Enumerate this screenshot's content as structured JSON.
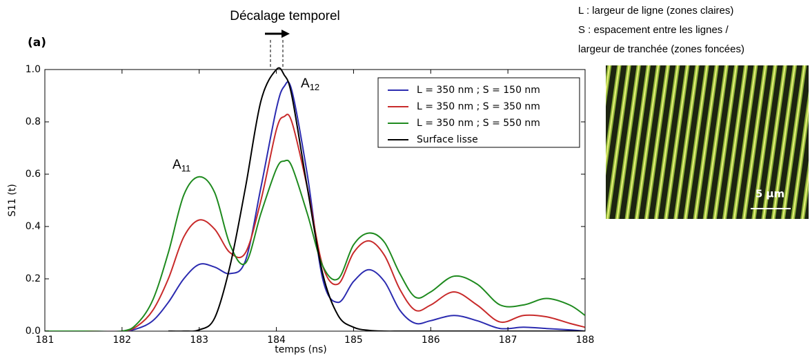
{
  "chart_data": {
    "type": "line",
    "title": "Décalage temporel",
    "panel_label": "(a)",
    "x_label": "temps (ns)",
    "y_label": "S11 (t)",
    "annotations": [
      {
        "text": "A",
        "sub": "11"
      },
      {
        "text": "A",
        "sub": "12"
      }
    ],
    "x": [
      181,
      181.5,
      182,
      182.2,
      182.4,
      182.6,
      182.8,
      183,
      183.2,
      183.4,
      183.6,
      183.8,
      184,
      184.1,
      184.2,
      184.4,
      184.6,
      184.8,
      185,
      185.2,
      185.4,
      185.6,
      185.8,
      186,
      186.3,
      186.6,
      186.9,
      187.2,
      187.5,
      187.8,
      188
    ],
    "series": [
      {
        "name": "L = 350 nm ; S = 150 nm",
        "color": "#2b2bb0",
        "values": [
          0,
          0,
          0,
          0.01,
          0.04,
          0.11,
          0.2,
          0.255,
          0.245,
          0.22,
          0.27,
          0.55,
          0.85,
          0.935,
          0.92,
          0.6,
          0.2,
          0.11,
          0.19,
          0.235,
          0.19,
          0.08,
          0.03,
          0.04,
          0.06,
          0.04,
          0.01,
          0.015,
          0.01,
          0.005,
          0
        ]
      },
      {
        "name": "L = 350 nm ; S = 350 nm",
        "color": "#c82a2a",
        "values": [
          0,
          0,
          0,
          0.02,
          0.08,
          0.2,
          0.36,
          0.425,
          0.39,
          0.3,
          0.3,
          0.5,
          0.77,
          0.82,
          0.8,
          0.55,
          0.25,
          0.18,
          0.3,
          0.345,
          0.29,
          0.16,
          0.08,
          0.1,
          0.15,
          0.1,
          0.035,
          0.06,
          0.055,
          0.03,
          0.015
        ]
      },
      {
        "name": "L = 350 nm ; S = 550 nm",
        "color": "#1e8a1e",
        "values": [
          0,
          0,
          0,
          0.03,
          0.12,
          0.3,
          0.52,
          0.59,
          0.53,
          0.33,
          0.26,
          0.45,
          0.62,
          0.65,
          0.63,
          0.45,
          0.25,
          0.2,
          0.33,
          0.375,
          0.34,
          0.22,
          0.13,
          0.15,
          0.21,
          0.18,
          0.1,
          0.1,
          0.125,
          0.1,
          0.06
        ]
      },
      {
        "name": "Surface lisse",
        "color": "#000000",
        "values": [
          null,
          null,
          null,
          null,
          null,
          0,
          0,
          0.005,
          0.05,
          0.25,
          0.55,
          0.88,
          1.0,
          0.98,
          0.9,
          0.55,
          0.22,
          0.06,
          0.015,
          0.003,
          0,
          0,
          0,
          0,
          0,
          0,
          0,
          0,
          0,
          0,
          0
        ]
      }
    ],
    "xlim": [
      181,
      188
    ],
    "ylim": [
      0,
      1
    ],
    "xticks": [
      181,
      182,
      183,
      184,
      185,
      186,
      187,
      188
    ],
    "yticks": [
      {
        "value": 0,
        "label": "0.0"
      },
      0.2,
      0.4,
      0.6,
      0.8,
      {
        "value": 1,
        "label": "1.0"
      }
    ],
    "legend": "upper right",
    "grid": false
  },
  "side_panel": {
    "lines": [
      "L : largeur de ligne (zones claires)",
      "S : espacement entre les lignes /",
      "largeur de tranchée (zones foncées)"
    ],
    "scale_bar": "5 µm"
  }
}
